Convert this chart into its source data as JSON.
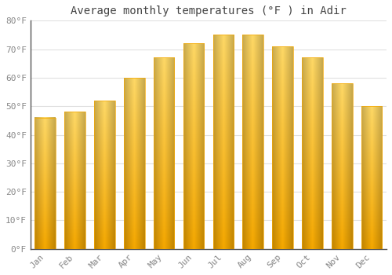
{
  "title": "Average monthly temperatures (°F ) in Adir",
  "months": [
    "Jan",
    "Feb",
    "Mar",
    "Apr",
    "May",
    "Jun",
    "Jul",
    "Aug",
    "Sep",
    "Oct",
    "Nov",
    "Dec"
  ],
  "values": [
    46,
    48,
    52,
    60,
    67,
    72,
    75,
    75,
    71,
    67,
    58,
    50
  ],
  "bar_color_dark": "#F5A800",
  "bar_color_light": "#FFD966",
  "ylim": [
    0,
    80
  ],
  "yticks": [
    0,
    10,
    20,
    30,
    40,
    50,
    60,
    70,
    80
  ],
  "ytick_labels": [
    "0°F",
    "10°F",
    "20°F",
    "30°F",
    "40°F",
    "50°F",
    "60°F",
    "70°F",
    "80°F"
  ],
  "background_color": "#ffffff",
  "grid_color": "#e0e0e0",
  "title_fontsize": 10,
  "tick_fontsize": 8,
  "tick_color": "#888888",
  "title_color": "#444444",
  "bar_width": 0.7,
  "bar_edge_color": "#E09000"
}
